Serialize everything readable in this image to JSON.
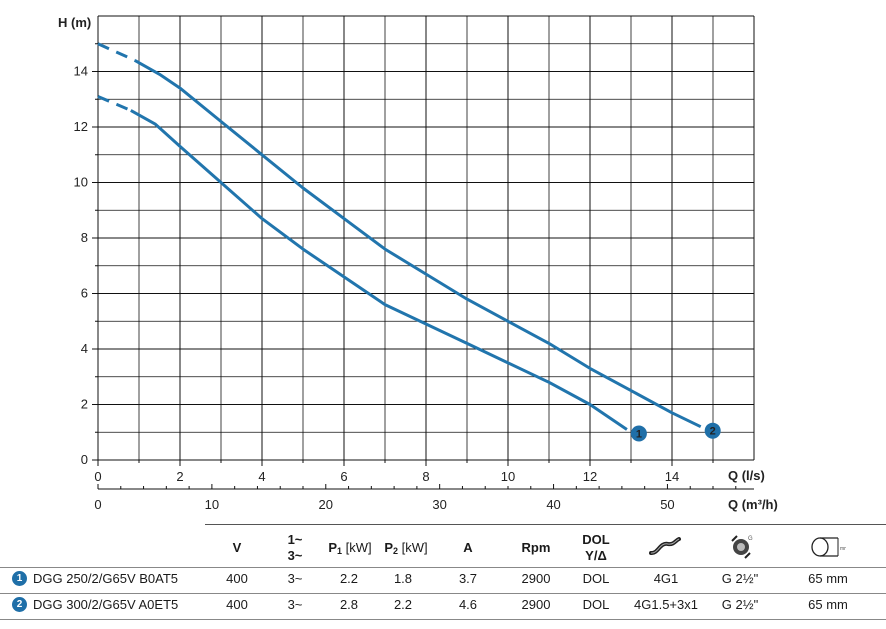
{
  "chart_data": {
    "type": "line",
    "xlabel": "Q (l/s)",
    "x2label": "Q (m³/h)",
    "ylabel": "H (m)",
    "xlim": [
      0,
      16
    ],
    "ylim": [
      0,
      16
    ],
    "x_ticks": [
      "0",
      "2",
      "4",
      "6",
      "8",
      "10",
      "12",
      "14"
    ],
    "x2_ticks": [
      "0",
      "10",
      "20",
      "30",
      "40",
      "50"
    ],
    "y_ticks": [
      "0",
      "2",
      "4",
      "6",
      "8",
      "10",
      "12",
      "14"
    ],
    "grid": true,
    "series": [
      {
        "name": "1",
        "color": "#2175ad",
        "dashed_until_x": 0.8,
        "x": [
          0,
          0.8,
          1.4,
          2,
          3,
          4,
          5,
          6,
          7,
          8,
          9,
          10,
          11,
          12,
          12.9
        ],
        "y": [
          13.1,
          12.6,
          12.1,
          11.3,
          10.0,
          8.7,
          7.6,
          6.6,
          5.6,
          4.9,
          4.2,
          3.5,
          2.8,
          2.0,
          1.1
        ]
      },
      {
        "name": "2",
        "color": "#2175ad",
        "dashed_until_x": 0.9,
        "x": [
          0,
          0.9,
          1.5,
          2,
          3,
          4,
          5,
          6,
          7,
          8,
          9,
          10,
          11,
          12,
          13,
          14,
          14.7
        ],
        "y": [
          15.0,
          14.4,
          13.9,
          13.4,
          12.2,
          11.0,
          9.8,
          8.7,
          7.6,
          6.7,
          5.8,
          5.0,
          4.2,
          3.3,
          2.5,
          1.7,
          1.2
        ]
      }
    ]
  },
  "table": {
    "headers": {
      "v": "V",
      "phase_top": "1~",
      "phase_bottom": "3~",
      "p1": "P",
      "p1_sub": "1",
      "p1_unit": "[kW]",
      "p2": "P",
      "p2_sub": "2",
      "p2_unit": "[kW]",
      "a": "A",
      "rpm": "Rpm",
      "dol_top": "DOL",
      "dol_bottom": "Y/Δ"
    },
    "icons": [
      "cable-icon",
      "outlet-connection-icon",
      "pipe-diameter-icon"
    ],
    "rows": [
      {
        "badge": "1",
        "model": "DGG 250/2/G65V B0AT5",
        "v": "400",
        "phase": "3~",
        "p1": "2.2",
        "p2": "1.8",
        "a": "3.7",
        "rpm": "2900",
        "start": "DOL",
        "cable": "4G1",
        "outlet": "G 2½\"",
        "diameter": "65 mm"
      },
      {
        "badge": "2",
        "model": "DGG 300/2/G65V A0ET5",
        "v": "400",
        "phase": "3~",
        "p1": "2.8",
        "p2": "2.2",
        "a": "4.6",
        "rpm": "2900",
        "start": "DOL",
        "cable": "4G1.5+3x1",
        "outlet": "G 2½\"",
        "diameter": "65 mm"
      }
    ]
  }
}
